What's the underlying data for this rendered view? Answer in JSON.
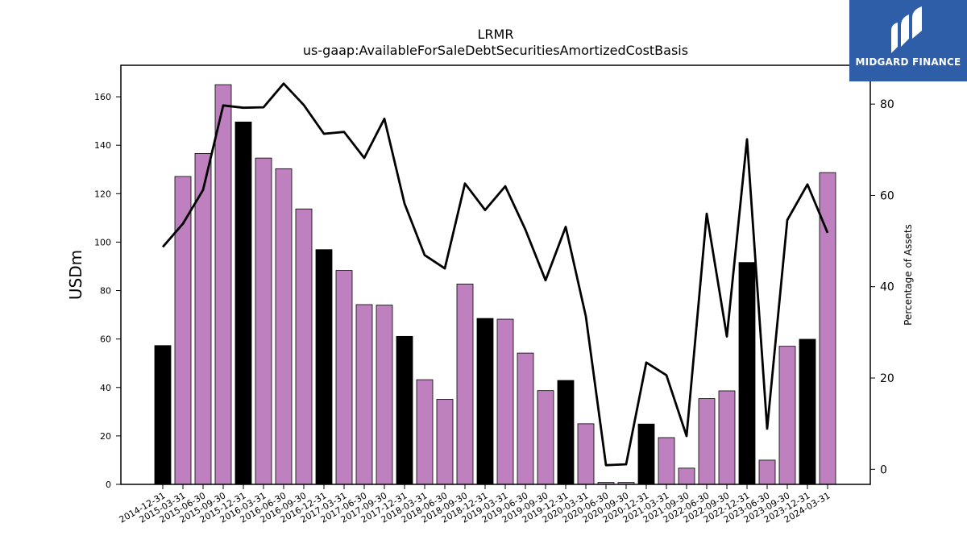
{
  "brand": {
    "name": "MIDGARD FINANCE",
    "bg_color": "#2f5ea8"
  },
  "chart_data": {
    "type": "bar",
    "title": "LRMR",
    "subtitle": "us-gaap:AvailableForSaleDebtSecuritiesAmortizedCostBasis",
    "ylabel": "USDm",
    "y2label": "Percentage of Assets",
    "ylim": [
      0,
      173
    ],
    "y2lim": [
      -3.3,
      88.5
    ],
    "yticks": [
      0,
      20,
      40,
      60,
      80,
      100,
      120,
      140,
      160
    ],
    "y2ticks": [
      0,
      20,
      40,
      60,
      80
    ],
    "grid": false,
    "colors": {
      "q4_bar": "#000000",
      "other_bar": "#bf80bf",
      "line": "#000000"
    },
    "categories": [
      "2014-12-31",
      "2015-03-31",
      "2015-06-30",
      "2015-09-30",
      "2015-12-31",
      "2016-03-31",
      "2016-06-30",
      "2016-09-30",
      "2016-12-31",
      "2017-03-31",
      "2017-06-30",
      "2017-09-30",
      "2017-12-31",
      "2018-03-31",
      "2018-06-30",
      "2018-09-30",
      "2018-12-31",
      "2019-03-31",
      "2019-06-30",
      "2019-09-30",
      "2019-12-31",
      "2020-03-31",
      "2020-06-30",
      "2020-09-30",
      "2020-12-31",
      "2021-03-31",
      "2021-09-30",
      "2022-06-30",
      "2022-09-30",
      "2022-12-31",
      "2023-06-30",
      "2023-09-30",
      "2023-12-31",
      "2024-03-31"
    ],
    "series": [
      {
        "axis": "left",
        "kind": "bar",
        "values": [
          57.3,
          127.1,
          136.6,
          165.0,
          149.6,
          134.7,
          130.3,
          113.7,
          96.9,
          88.3,
          74.2,
          74.0,
          61.1,
          43.2,
          35.1,
          82.7,
          68.5,
          68.2,
          54.2,
          38.7,
          42.9,
          25.0,
          0.8,
          0.8,
          24.9,
          19.3,
          6.7,
          35.4,
          38.6,
          91.6,
          10.0,
          57.0,
          59.9,
          128.7
        ]
      },
      {
        "axis": "right",
        "kind": "line",
        "values": [
          48.7,
          53.8,
          61.2,
          79.7,
          79.2,
          79.3,
          84.5,
          79.8,
          73.5,
          73.9,
          68.2,
          76.8,
          58.2,
          46.9,
          44.0,
          62.6,
          56.8,
          62.0,
          52.5,
          41.4,
          53.1,
          33.5,
          0.9,
          1.1,
          23.4,
          20.6,
          7.3,
          56.0,
          29.1,
          72.3,
          8.9,
          54.6,
          62.4,
          51.8
        ]
      }
    ]
  }
}
